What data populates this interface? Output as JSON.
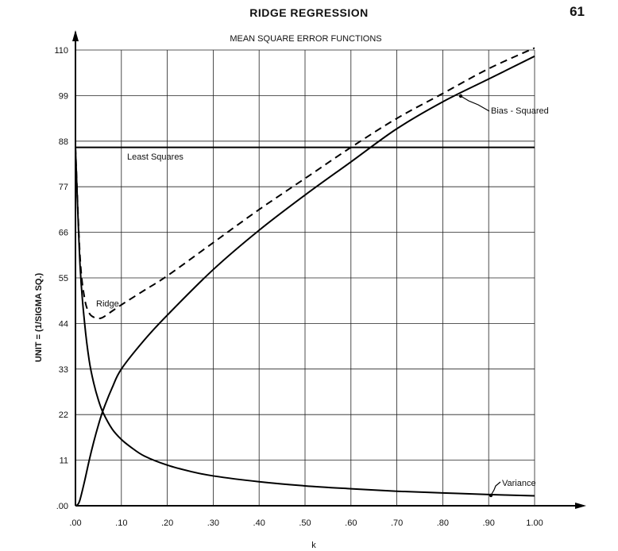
{
  "page": {
    "header_title": "RIDGE REGRESSION",
    "page_number": "61"
  },
  "chart_data": {
    "type": "line",
    "title": "MEAN SQUARE ERROR FUNCTIONS",
    "xlabel": "k",
    "ylabel": "UNIT = (1/SIGMA SQ.)",
    "xlim": [
      0,
      1.0
    ],
    "ylim": [
      0,
      110
    ],
    "grid": true,
    "x_ticks": [
      ".00",
      ".10",
      ".20",
      ".30",
      ".40",
      ".50",
      ".60",
      ".70",
      ".80",
      ".90",
      "1.00"
    ],
    "y_ticks": [
      ".00",
      "11",
      "22",
      "33",
      "44",
      "55",
      "66",
      "77",
      "88",
      "99",
      "110"
    ],
    "series": [
      {
        "name": "Least Squares",
        "style": "solid",
        "x": [
          0.0,
          1.0
        ],
        "y": [
          86.5,
          86.5
        ]
      },
      {
        "name": "Ridge",
        "style": "dashed",
        "x": [
          0.0,
          0.01,
          0.02,
          0.03,
          0.04,
          0.05,
          0.06,
          0.08,
          0.1,
          0.15,
          0.2,
          0.3,
          0.4,
          0.5,
          0.6,
          0.7,
          0.8,
          0.9,
          1.0
        ],
        "y": [
          86.5,
          60.0,
          50.0,
          46.5,
          45.5,
          45.2,
          45.5,
          47.0,
          48.5,
          52.0,
          55.5,
          63.5,
          71.5,
          79.0,
          86.5,
          93.5,
          99.5,
          105.5,
          110.5
        ]
      },
      {
        "name": "Bias - Squared",
        "style": "solid",
        "x": [
          0.0,
          0.005,
          0.01,
          0.02,
          0.03,
          0.04,
          0.05,
          0.06,
          0.08,
          0.1,
          0.15,
          0.2,
          0.3,
          0.4,
          0.5,
          0.6,
          0.7,
          0.8,
          0.9,
          1.0
        ],
        "y": [
          0.0,
          0.3,
          1.5,
          6.0,
          11.0,
          15.5,
          19.5,
          23.0,
          28.5,
          33.0,
          40.0,
          46.0,
          57.0,
          66.5,
          75.0,
          83.0,
          91.0,
          97.5,
          103.0,
          108.5
        ]
      },
      {
        "name": "Variance",
        "style": "solid",
        "x": [
          0.0,
          0.01,
          0.02,
          0.03,
          0.04,
          0.05,
          0.06,
          0.08,
          0.1,
          0.12,
          0.15,
          0.2,
          0.25,
          0.3,
          0.4,
          0.5,
          0.6,
          0.7,
          0.8,
          0.9,
          1.0
        ],
        "y": [
          86.5,
          58.0,
          44.0,
          35.0,
          29.5,
          25.5,
          22.5,
          18.5,
          16.0,
          14.2,
          12.0,
          9.8,
          8.3,
          7.2,
          5.8,
          4.8,
          4.1,
          3.5,
          3.1,
          2.7,
          2.4
        ]
      }
    ],
    "annotations": [
      {
        "text": "Least Squares"
      },
      {
        "text": "Ridge"
      },
      {
        "text": "Bias - Squared"
      },
      {
        "text": "Variance"
      }
    ]
  }
}
